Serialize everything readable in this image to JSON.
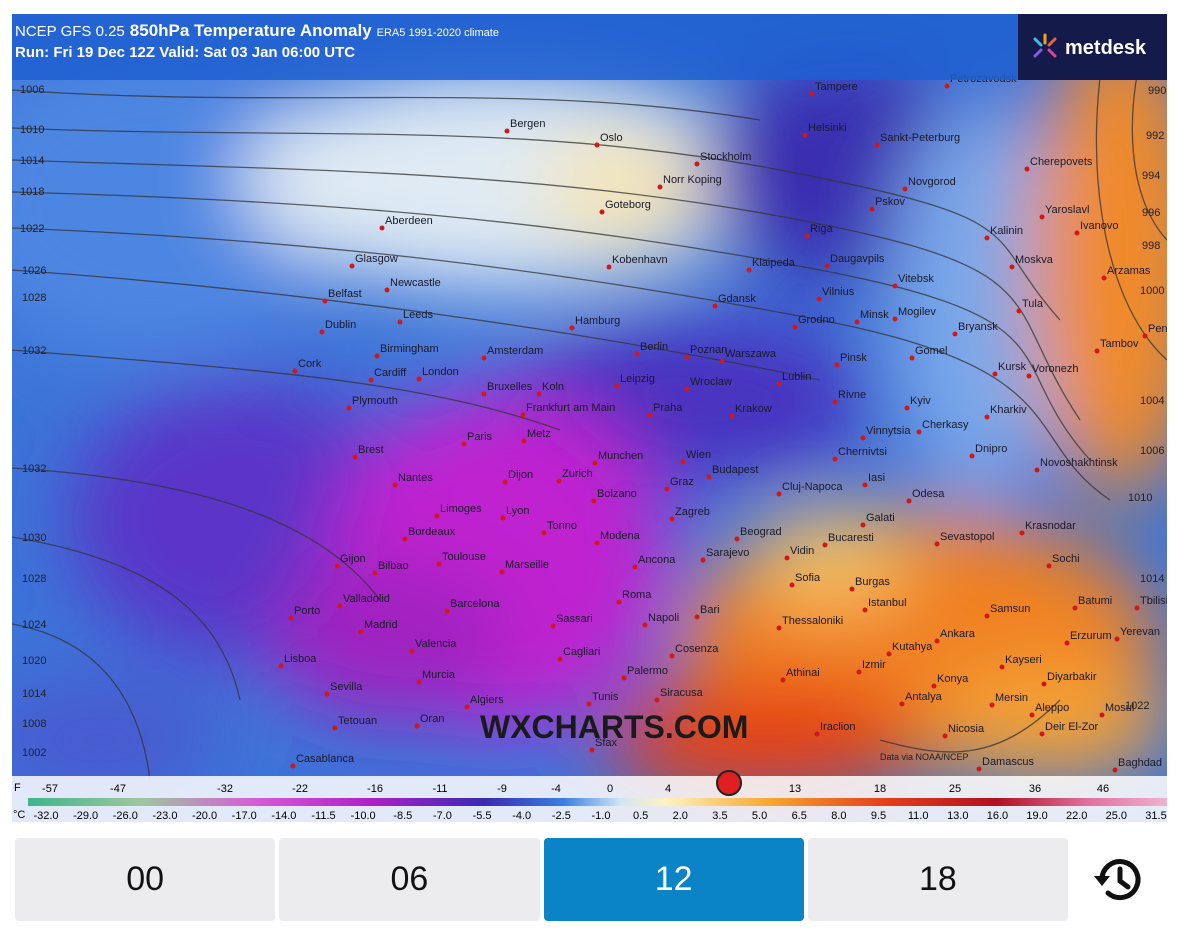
{
  "header": {
    "model": "NCEP GFS 0.25",
    "title": "850hPa Temperature Anomaly",
    "climate": "ERA5 1991-2020 climate",
    "run": "Run: Fri 19 Dec 12Z Valid: Sat 03 Jan 06:00 UTC"
  },
  "logo": "metdesk",
  "watermark": "WXCHARTS.COM",
  "credit": "Data via NOAA/NCEP",
  "cities": [
    "Tampere",
    "Petrozavodsk",
    "Bergen",
    "Oslo",
    "Helsinki",
    "Sankt-Peterburg",
    "Stockholm",
    "Norr Koping",
    "Cherepovets",
    "Novgorod",
    "Aberdeen",
    "Goteborg",
    "Pskov",
    "Yaroslavl",
    "Ivanovo",
    "Riga",
    "Kalinin",
    "Glasgow",
    "Kobenhavn",
    "Klaipeda",
    "Daugavpils",
    "Moskva",
    "Arzamas",
    "Newcastle",
    "Belfast",
    "Vitebsk",
    "Tula",
    "Gdansk",
    "Vilnius",
    "Leeds",
    "Dublin",
    "Hamburg",
    "Grodno",
    "Minsk",
    "Mogilev",
    "Bryansk",
    "Penza",
    "Birmingham",
    "Amsterdam",
    "Berlin",
    "Poznan",
    "Warszawa",
    "Pinsk",
    "Gomel",
    "Tambov",
    "Cork",
    "Cardiff",
    "London",
    "Leipzig",
    "Wroclaw",
    "Lublin",
    "Kursk",
    "Voronezh",
    "Bruxelles",
    "Koln",
    "Plymouth",
    "Frankfurt am Main",
    "Praha",
    "Krakow",
    "Rivne",
    "Kyiv",
    "Kharkiv",
    "Paris",
    "Metz",
    "Cherkasy",
    "Vinnytsia",
    "Brest",
    "Munchen",
    "Wien",
    "Chernivtsi",
    "Dnipro",
    "Novoshakhtinsk",
    "Budapest",
    "Nantes",
    "Dijon",
    "Zurich",
    "Graz",
    "Iasi",
    "Cluj-Napoca",
    "Odesa",
    "Bolzano",
    "Limoges",
    "Lyon",
    "Zagreb",
    "Galati",
    "Krasnodar",
    "Bordeaux",
    "Torino",
    "Sevastopol",
    "Beograd",
    "Bucaresti",
    "Modena",
    "Toulouse",
    "Sarajevo",
    "Vidin",
    "Sochi",
    "Gijon",
    "Bilbao",
    "Marseille",
    "Ancona",
    "Sofia",
    "Burgas",
    "Valladolid",
    "Barcelona",
    "Roma",
    "Bari",
    "Istanbul",
    "Samsun",
    "Batumi",
    "Tbilisi",
    "Porto",
    "Madrid",
    "Napoli",
    "Sassari",
    "Thessaloniki",
    "Ankara",
    "Erzurum",
    "Yerevan",
    "Valencia",
    "Cagliari",
    "Cosenza",
    "Kutahya",
    "Kayseri",
    "Lisboa",
    "Murcia",
    "Palermo",
    "Izmir",
    "Konya",
    "Diyarbakir",
    "Sevilla",
    "Siracusa",
    "Athinai",
    "Antalya",
    "Mersin",
    "Algiers",
    "Tunis",
    "Aleppo",
    "Mosul",
    "Tetouan",
    "Oran",
    "Iraclion",
    "Nicosia",
    "Deir El-Zor",
    "Casablanca",
    "Sfax",
    "Damascus",
    "Baghdad"
  ],
  "isobars": [
    "1006",
    "1010",
    "1014",
    "1018",
    "1022",
    "1026",
    "1028",
    "1032",
    "1032",
    "1030",
    "1028",
    "1024",
    "1020",
    "1014",
    "1008",
    "1002",
    "990",
    "992",
    "994",
    "996",
    "998",
    "1000",
    "1004",
    "1006",
    "1010",
    "1014",
    "1022"
  ],
  "scale": {
    "f_unit": "F",
    "f_labels": [
      "-57",
      "-47",
      "-32",
      "-22",
      "-16",
      "-11",
      "-9",
      "-4",
      "0",
      "4",
      "13",
      "18",
      "25",
      "36",
      "46"
    ],
    "c_unit": "°C",
    "c_labels": [
      "-32.0",
      "-29.0",
      "-26.0",
      "-23.0",
      "-20.0",
      "-17.0",
      "-14.0",
      "-11.5",
      "-10.0",
      "-8.5",
      "-7.0",
      "-5.5",
      "-4.0",
      "-2.5",
      "-1.0",
      "0.5",
      "2.0",
      "3.5",
      "5.0",
      "6.5",
      "8.0",
      "9.5",
      "11.0",
      "13.0",
      "16.0",
      "19.0",
      "22.0",
      "25.0",
      "31.5"
    ]
  },
  "tabs": [
    "00",
    "06",
    "12",
    "18"
  ],
  "active_tab": 2
}
